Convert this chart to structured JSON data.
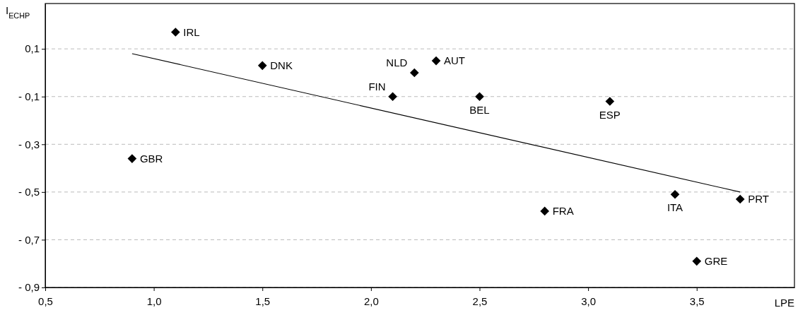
{
  "chart_data": {
    "type": "scatter",
    "xlabel": "LPE",
    "ylabel": "I$_{ECHP}$",
    "xlim": [
      0.5,
      3.95
    ],
    "ylim": [
      -0.9,
      0.29
    ],
    "xticks": [
      {
        "value": 0.5,
        "label": "0,5"
      },
      {
        "value": 1.0,
        "label": "1,0"
      },
      {
        "value": 1.5,
        "label": "1,5"
      },
      {
        "value": 2.0,
        "label": "2,0"
      },
      {
        "value": 2.5,
        "label": "2,5"
      },
      {
        "value": 3.0,
        "label": "3,0"
      },
      {
        "value": 3.5,
        "label": "3,5"
      }
    ],
    "yticks": [
      {
        "value": 0.1,
        "label": "0,1"
      },
      {
        "value": -0.1,
        "label": "- 0,1"
      },
      {
        "value": -0.3,
        "label": "- 0,3"
      },
      {
        "value": -0.5,
        "label": "- 0,5"
      },
      {
        "value": -0.7,
        "label": "- 0,7"
      },
      {
        "value": -0.9,
        "label": "- 0,9"
      }
    ],
    "grid": "y",
    "marker": "diamond",
    "series": [
      {
        "color": "#000000",
        "x": [
          1.1,
          1.5,
          0.9,
          2.1,
          2.2,
          2.3,
          2.5,
          3.1,
          2.8,
          3.4,
          3.7,
          3.5
        ],
        "values": [
          0.17,
          0.03,
          -0.36,
          -0.1,
          0.0,
          0.05,
          -0.1,
          -0.12,
          -0.58,
          -0.51,
          -0.53,
          -0.79
        ]
      },
      {
        "type": "line",
        "color": "#000000",
        "x": [
          0.9,
          3.7
        ],
        "values": [
          0.08,
          -0.5
        ],
        "marker": "none",
        "line_style": "solid"
      }
    ],
    "annotations": [
      {
        "text": "IRL",
        "x": 1.1,
        "y": 0.17
      },
      {
        "text": "DNK",
        "x": 1.5,
        "y": 0.03
      },
      {
        "text": "GBR",
        "x": 0.9,
        "y": -0.36
      },
      {
        "text": "FIN",
        "x": 2.1,
        "y": -0.1
      },
      {
        "text": "NLD",
        "x": 2.2,
        "y": 0.0
      },
      {
        "text": "AUT",
        "x": 2.3,
        "y": 0.05
      },
      {
        "text": "BEL",
        "x": 2.5,
        "y": -0.1
      },
      {
        "text": "ESP",
        "x": 3.1,
        "y": -0.12
      },
      {
        "text": "FRA",
        "x": 2.8,
        "y": -0.58
      },
      {
        "text": "ITA",
        "x": 3.4,
        "y": -0.51
      },
      {
        "text": "PRT",
        "x": 3.7,
        "y": -0.53
      },
      {
        "text": "GRE",
        "x": 3.5,
        "y": -0.79
      }
    ]
  }
}
